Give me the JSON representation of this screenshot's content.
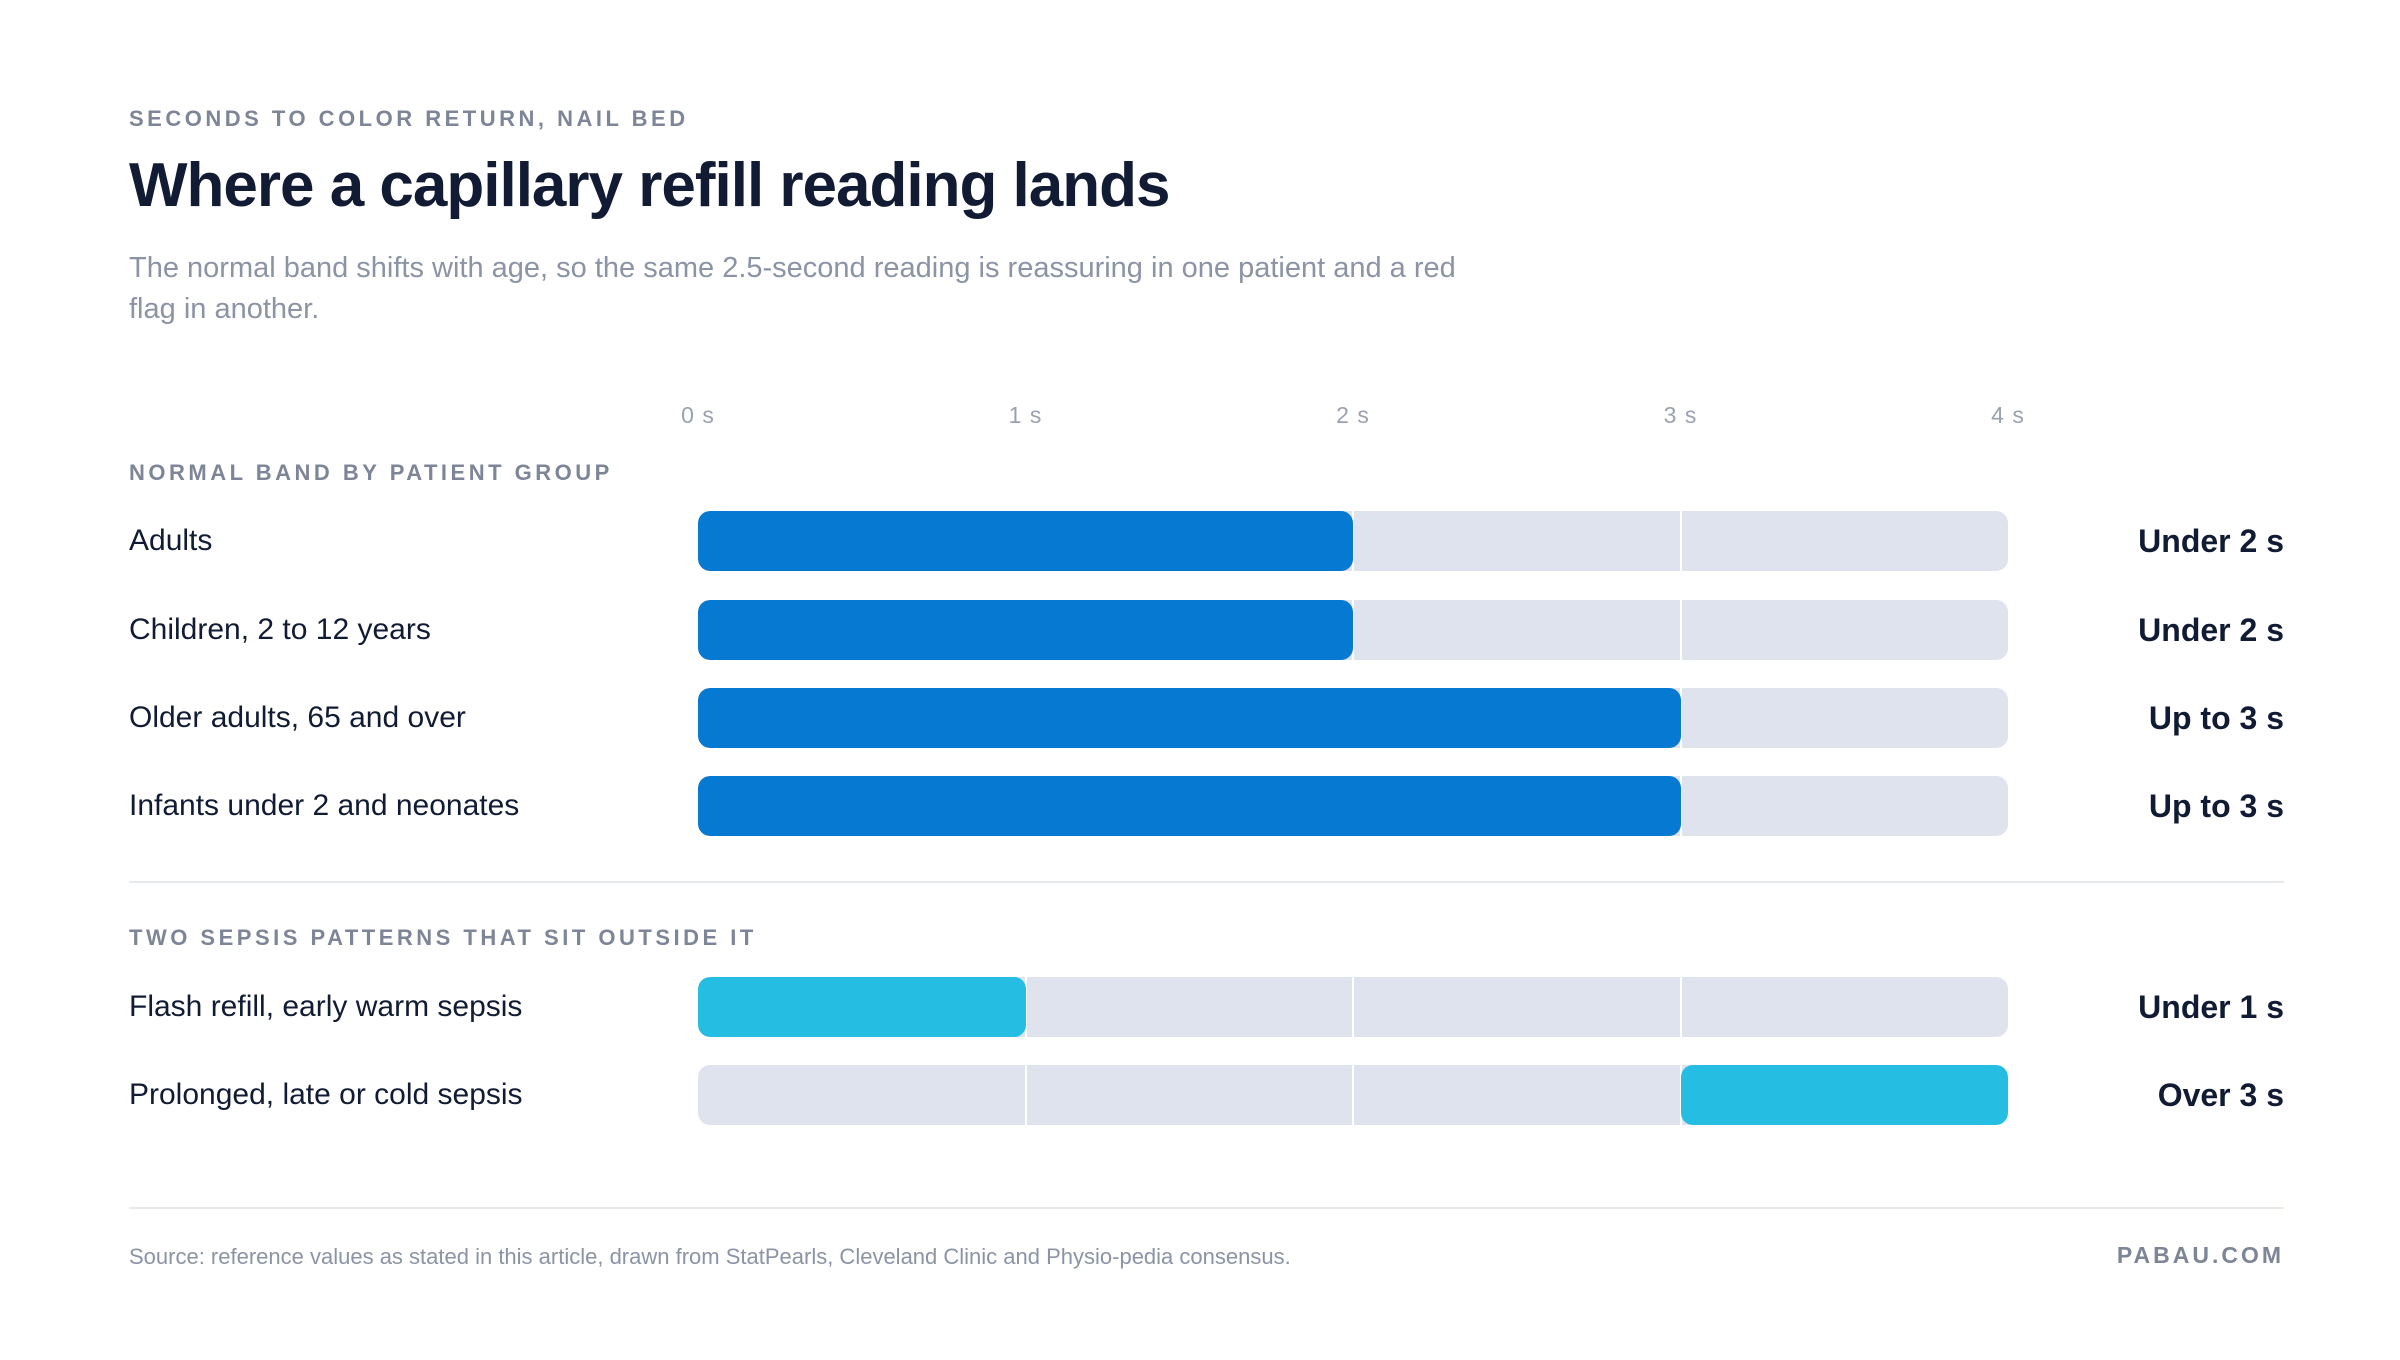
{
  "header": {
    "eyebrow": "SECONDS TO COLOR RETURN, NAIL BED",
    "title": "Where a capillary refill reading lands",
    "subtitle": "The normal band shifts with age, so the same 2.5-second reading is reassuring in one patient and a red flag in another."
  },
  "colors": {
    "normal_bar": "#0679d3",
    "sepsis_bar": "#25bde2",
    "track": "#dfe3ed"
  },
  "chart_data": {
    "type": "bar",
    "orientation": "horizontal",
    "xlim": [
      0,
      4
    ],
    "ticks": [
      "0 s",
      "1 s",
      "2 s",
      "3 s",
      "4 s"
    ],
    "grid": true,
    "groups": [
      {
        "label": "NORMAL BAND BY PATIENT GROUP",
        "rows": [
          {
            "label": "Adults",
            "start": 0,
            "end": 2,
            "value_label": "Under 2 s",
            "color": "#0679d3"
          },
          {
            "label": "Children, 2 to 12 years",
            "start": 0,
            "end": 2,
            "value_label": "Under 2 s",
            "color": "#0679d3"
          },
          {
            "label": "Older adults, 65 and over",
            "start": 0,
            "end": 3,
            "value_label": "Up to 3 s",
            "color": "#0679d3"
          },
          {
            "label": "Infants under 2 and neonates",
            "start": 0,
            "end": 3,
            "value_label": "Up to 3 s",
            "color": "#0679d3"
          }
        ]
      },
      {
        "label": "TWO SEPSIS PATTERNS THAT SIT OUTSIDE IT",
        "rows": [
          {
            "label": "Flash refill, early warm sepsis",
            "start": 0,
            "end": 1,
            "value_label": "Under 1 s",
            "color": "#25bde2"
          },
          {
            "label": "Prolonged, late or cold sepsis",
            "start": 3,
            "end": 4,
            "value_label": "Over 3 s",
            "color": "#25bde2"
          }
        ]
      }
    ]
  },
  "footer": {
    "source": "Source: reference values as stated in this article, drawn from StatPearls, Cleveland Clinic and Physio-pedia consensus.",
    "brand": "PABAU.COM"
  }
}
